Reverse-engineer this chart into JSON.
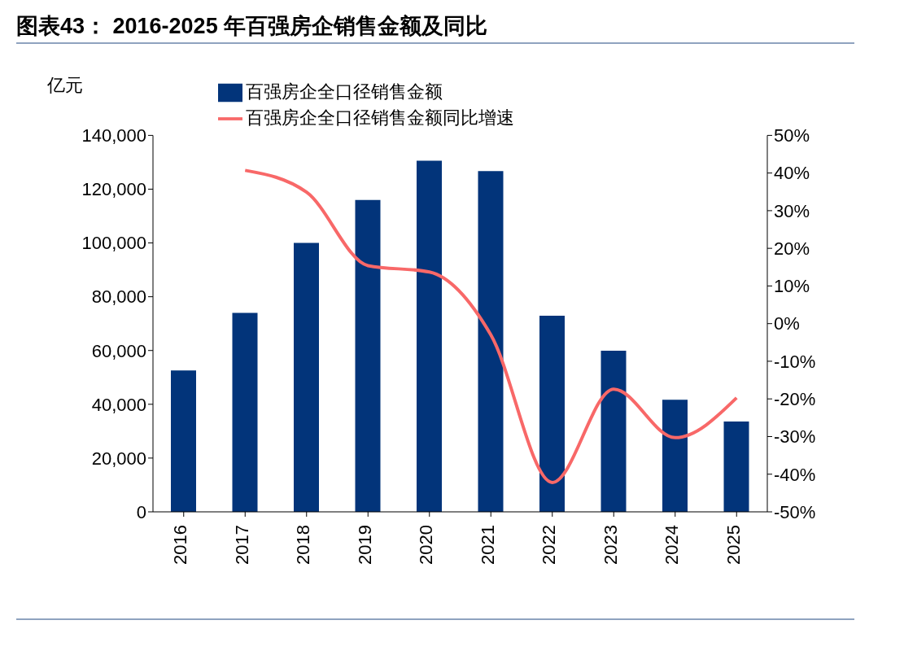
{
  "chart_data": {
    "type": "bar",
    "title": "图表43：  2016-2025 年百强房企销售金额及同比",
    "ylabel": "亿元",
    "categories": [
      "2016",
      "2017",
      "2018",
      "2019",
      "2020",
      "2021",
      "2022",
      "2023",
      "2024",
      "2025"
    ],
    "series": [
      {
        "name": "百强房企全口径销售金额",
        "color": "#02347a",
        "values": [
          52600,
          74000,
          100000,
          116000,
          130600,
          126700,
          72900,
          59900,
          41700,
          33600
        ]
      },
      {
        "name": "百强房企全口径销售金额同比增速",
        "type": "line",
        "axis": "y2",
        "color": "#f86868",
        "values": [
          null,
          40.7,
          34.9,
          15.4,
          13.7,
          -3,
          -42.2,
          -17.4,
          -30.3,
          -19.7
        ]
      }
    ],
    "ylim": [
      0,
      140000
    ],
    "yticks": [
      0,
      {
        "value": 20000,
        "label": "20,000"
      },
      {
        "value": 40000,
        "label": "40,000"
      },
      {
        "value": 60000,
        "label": "60,000"
      },
      {
        "value": 80000,
        "label": "80,000"
      },
      {
        "value": 100000,
        "label": "100,000"
      },
      {
        "value": 120000,
        "label": "120,000"
      },
      {
        "value": 140000,
        "label": "140,000"
      }
    ],
    "y2lim": [
      -50,
      50
    ],
    "y2ticks": [
      {
        "value": -50,
        "label": "-50%"
      },
      {
        "value": -40,
        "label": "-40%"
      },
      {
        "value": -30,
        "label": "-30%"
      },
      {
        "value": -20,
        "label": "-20%"
      },
      {
        "value": -10,
        "label": "-10%"
      },
      {
        "value": 0,
        "label": "0%"
      },
      {
        "value": 10,
        "label": "10%"
      },
      {
        "value": 20,
        "label": "20%"
      },
      {
        "value": 30,
        "label": "30%"
      },
      {
        "value": 40,
        "label": "40%"
      },
      {
        "value": 50,
        "label": "50%"
      }
    ],
    "grid": false,
    "legend": "top",
    "marker": "none",
    "line_style": "solid"
  }
}
